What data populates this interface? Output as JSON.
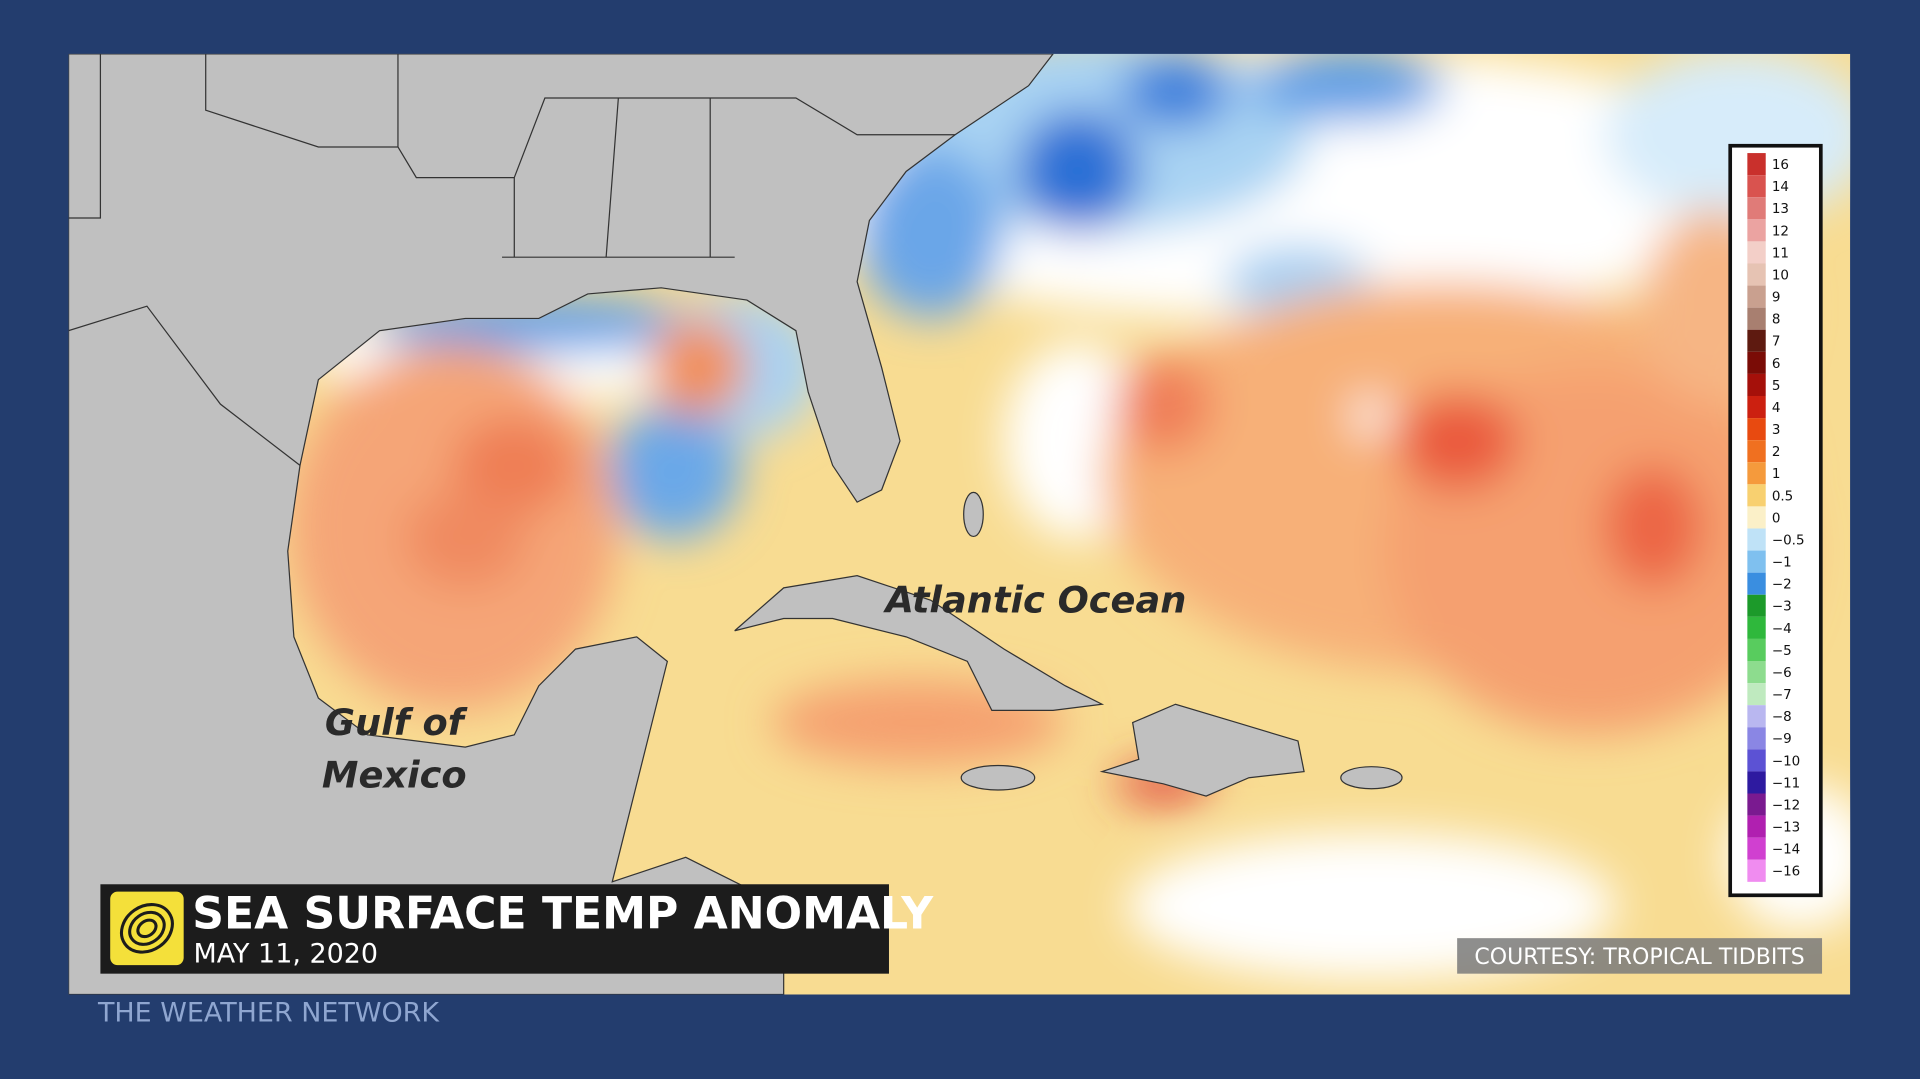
{
  "banner": {
    "title": "SEA SURFACE TEMP ANOMALY",
    "date": "MAY 11, 2020"
  },
  "brand": "THE WEATHER NETWORK",
  "credit": "COURTESY: TROPICAL TIDBITS",
  "labels": {
    "gulf": [
      "Gulf of",
      "Mexico"
    ],
    "atlantic": "Atlantic Ocean"
  },
  "legend": {
    "labels": [
      "16",
      "14",
      "13",
      "12",
      "11",
      "10",
      "9",
      "8",
      "7",
      "6",
      "5",
      "4",
      "3",
      "2",
      "1",
      "0.5",
      "0",
      "−0.5",
      "−1",
      "−2",
      "−3",
      "−4",
      "−5",
      "−6",
      "−7",
      "−8",
      "−9",
      "−10",
      "−11",
      "−12",
      "−13",
      "−14",
      "−16"
    ]
  }
}
